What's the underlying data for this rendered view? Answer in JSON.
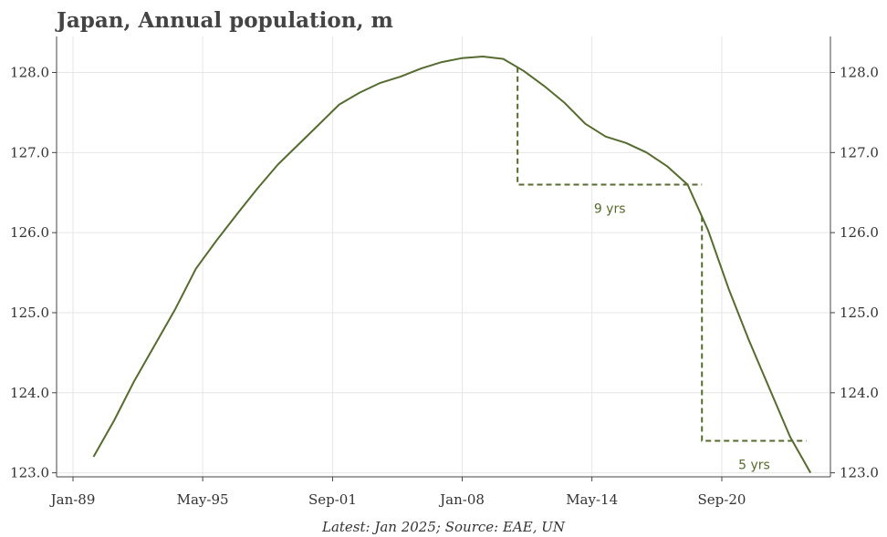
{
  "chart_data": {
    "type": "line",
    "title": "Japan, Annual population, m",
    "footnote": "Latest: Jan 2025; Source: EAE, UN",
    "xlabel": "",
    "ylabel": "",
    "x_tick_labels": [
      "Jan-89",
      "May-95",
      "Sep-01",
      "Jan-08",
      "May-14",
      "Sep-20"
    ],
    "y_tick_labels": [
      "123.0",
      "124.0",
      "125.0",
      "126.0",
      "127.0",
      "128.0"
    ],
    "ylim": [
      122.95,
      128.45
    ],
    "grid": true,
    "line_color": "#556b2f",
    "series": [
      {
        "x": [
          1990,
          1991,
          1992,
          1993,
          1994,
          1995,
          1996,
          1997,
          1998,
          1999,
          2000,
          2001,
          2002,
          2003,
          2004,
          2005,
          2006,
          2007,
          2008,
          2009,
          2010,
          2011,
          2012,
          2013,
          2014,
          2015,
          2016,
          2017,
          2018,
          2019,
          2020,
          2021,
          2022,
          2023,
          2024,
          2025
        ],
        "values": [
          123.2,
          123.65,
          124.15,
          124.6,
          125.05,
          125.55,
          125.9,
          126.23,
          126.55,
          126.85,
          127.1,
          127.35,
          127.6,
          127.75,
          127.87,
          127.95,
          128.05,
          128.13,
          128.18,
          128.2,
          128.17,
          128.02,
          127.83,
          127.62,
          127.36,
          127.2,
          127.12,
          127.0,
          126.83,
          126.6,
          126.03,
          125.3,
          124.65,
          124.05,
          123.45,
          123.0
        ]
      }
    ],
    "annotations": [
      {
        "label": "9 yrs",
        "from_x": 2010.7,
        "to_x": 2019.7,
        "level": 126.6
      },
      {
        "label": "5 yrs",
        "from_x": 2019.7,
        "to_x": 2024.8,
        "level": 123.4
      }
    ]
  }
}
